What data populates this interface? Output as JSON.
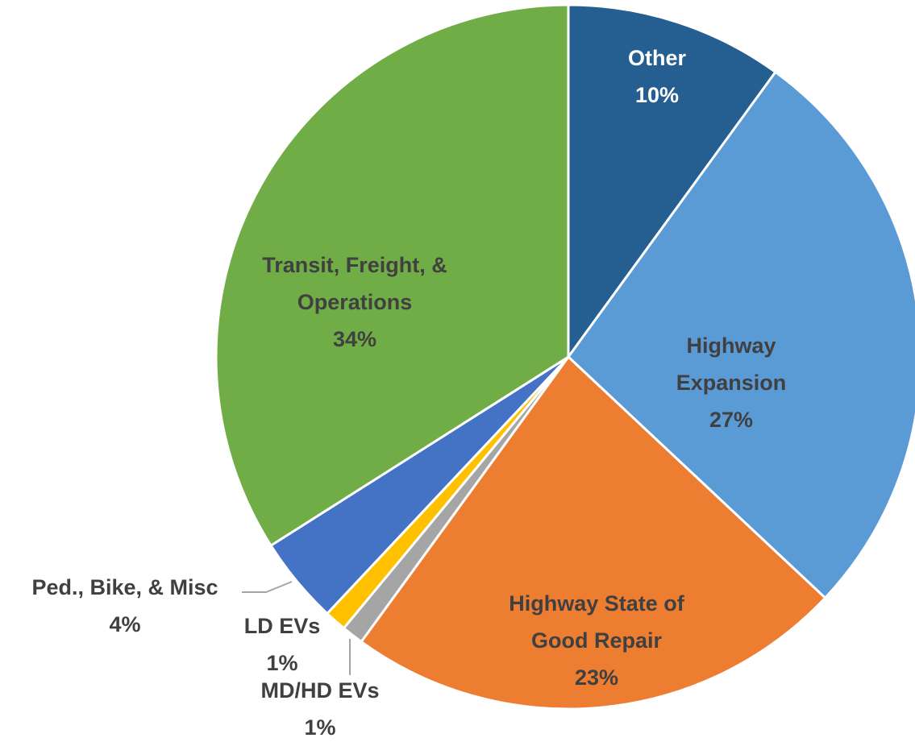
{
  "chart_data": {
    "type": "pie",
    "categories": [
      "Other",
      "Highway Expansion",
      "Highway State of Good Repair",
      "MD/HD EVs",
      "LD EVs",
      "Ped., Bike, & Misc",
      "Transit, Freight, & Operations"
    ],
    "values": [
      10,
      27,
      23,
      1,
      1,
      4,
      34
    ],
    "value_labels": [
      "10%",
      "27%",
      "23%",
      "1%",
      "1%",
      "4%",
      "34%"
    ],
    "colors": [
      "#255e91",
      "#5b9bd5",
      "#ed7d31",
      "#a5a5a5",
      "#ffc000",
      "#4472c4",
      "#70ad47"
    ]
  }
}
